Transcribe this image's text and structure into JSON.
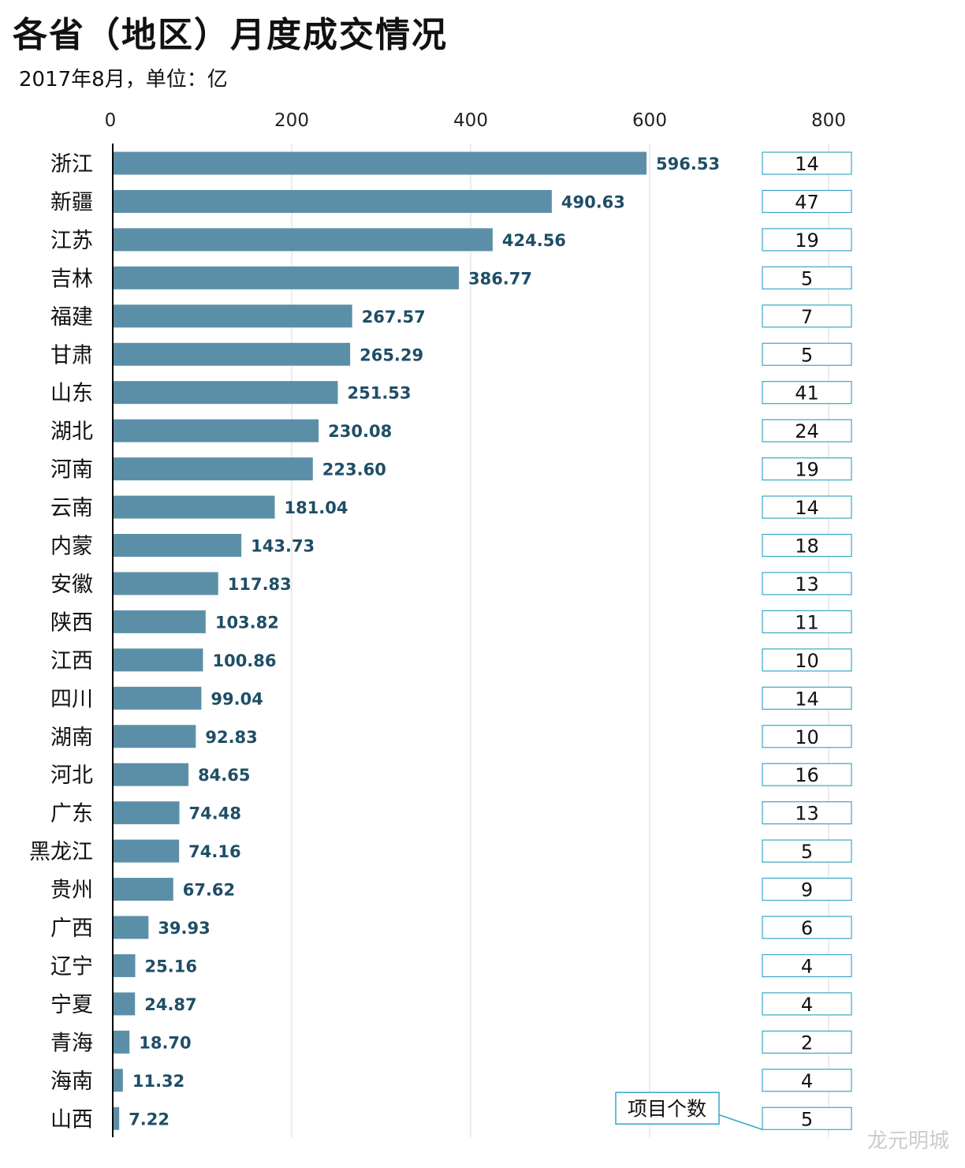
{
  "title": "各省（地区）月度成交情况",
  "subtitle": "2017年8月，单位：亿",
  "watermark": "龙元明城",
  "colors": {
    "bar": "#5b8fa8",
    "value_label": "#1f4e66",
    "count_box_border": "#3aa6c9",
    "gridline": "#d9d9d9",
    "axis": "#000000"
  },
  "chart_data": {
    "type": "bar",
    "orientation": "horizontal",
    "xlim": [
      0,
      800
    ],
    "xticks": [
      "0",
      "200",
      "400",
      "600",
      "800"
    ],
    "grid": true,
    "categories": [
      "浙江",
      "新疆",
      "江苏",
      "吉林",
      "福建",
      "甘肃",
      "山东",
      "湖北",
      "河南",
      "云南",
      "内蒙",
      "安徽",
      "陕西",
      "江西",
      "四川",
      "湖南",
      "河北",
      "广东",
      "黑龙江",
      "贵州",
      "广西",
      "辽宁",
      "宁夏",
      "青海",
      "海南",
      "山西"
    ],
    "values": [
      596.53,
      490.63,
      424.56,
      386.77,
      267.57,
      265.29,
      251.53,
      230.08,
      223.6,
      181.04,
      143.73,
      117.83,
      103.82,
      100.86,
      99.04,
      92.83,
      84.65,
      74.48,
      74.16,
      67.62,
      39.93,
      25.16,
      24.87,
      18.7,
      11.32,
      7.22
    ],
    "value_labels": [
      "596.53",
      "490.63",
      "424.56",
      "386.77",
      "267.57",
      "265.29",
      "251.53",
      "230.08",
      "223.60",
      "181.04",
      "143.73",
      "117.83",
      "103.82",
      "100.86",
      "99.04",
      "92.83",
      "84.65",
      "74.48",
      "74.16",
      "67.62",
      "39.93",
      "25.16",
      "24.87",
      "18.70",
      "11.32",
      "7.22"
    ],
    "counts": [
      14,
      47,
      19,
      5,
      7,
      5,
      41,
      24,
      19,
      14,
      18,
      13,
      11,
      10,
      14,
      10,
      16,
      13,
      5,
      9,
      6,
      4,
      4,
      2,
      4,
      5
    ],
    "counts_label": "项目个数"
  }
}
